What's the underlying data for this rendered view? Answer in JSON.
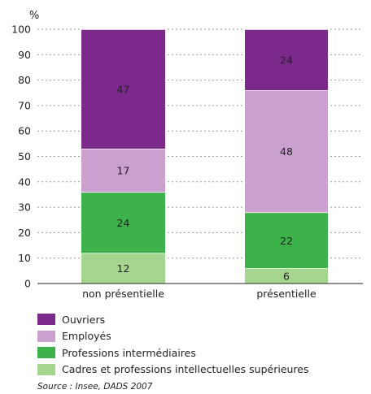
{
  "chart_data": {
    "type": "bar",
    "stacked": true,
    "ylabel": "%",
    "ylim": [
      0,
      100
    ],
    "yticks": [
      0,
      10,
      20,
      30,
      40,
      50,
      60,
      70,
      80,
      90,
      100
    ],
    "grid": true,
    "categories": [
      "non présentielle",
      "présentielle"
    ],
    "series": [
      {
        "name": "Cadres et professions intellectuelles supérieures",
        "values": [
          12,
          6
        ],
        "color": "#a6d58f"
      },
      {
        "name": "Professions intermédiaires",
        "values": [
          24,
          22
        ],
        "color": "#3db14a"
      },
      {
        "name": "Employés",
        "values": [
          17,
          48
        ],
        "color": "#c9a0ce"
      },
      {
        "name": "Ouvriers",
        "values": [
          47,
          24
        ],
        "color": "#7b2a8c"
      }
    ],
    "legend_order": [
      "Ouvriers",
      "Employés",
      "Professions intermédiaires",
      "Cadres et professions intellectuelles supérieures"
    ],
    "legend_placement": "bottom"
  },
  "source": "Source : Insee, DADS 2007"
}
